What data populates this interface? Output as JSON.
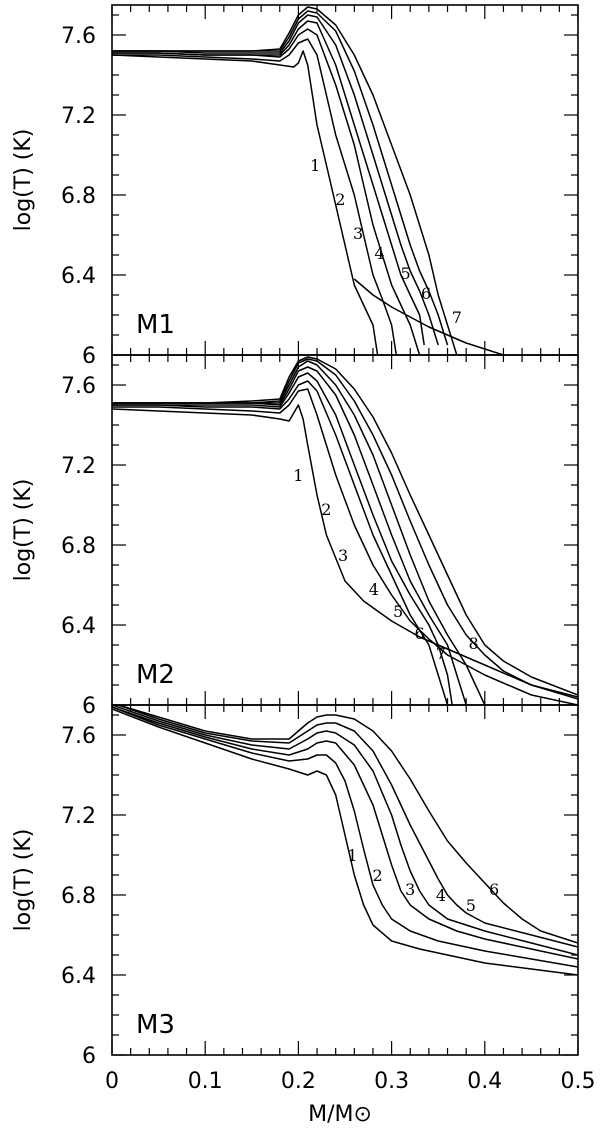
{
  "chart_data": [
    {
      "type": "line",
      "panel": "M1",
      "xlabel": "M/M⊙",
      "ylabel": "log(T)  (K)",
      "xlim": [
        0,
        0.5
      ],
      "ylim": [
        6,
        7.75
      ],
      "yticks": [
        "6",
        "6.4",
        "6.8",
        "7.2",
        "7.6"
      ],
      "series": [
        {
          "name": "1",
          "x": [
            0,
            0.05,
            0.1,
            0.15,
            0.18,
            0.195,
            0.2,
            0.205,
            0.21,
            0.215,
            0.22,
            0.23,
            0.24,
            0.25,
            0.26,
            0.27,
            0.28,
            0.285
          ],
          "y": [
            7.5,
            7.49,
            7.48,
            7.47,
            7.45,
            7.44,
            7.46,
            7.52,
            7.45,
            7.3,
            7.15,
            6.95,
            6.75,
            6.55,
            6.35,
            6.25,
            6.15,
            6.0
          ]
        },
        {
          "name": "2",
          "x": [
            0,
            0.05,
            0.1,
            0.15,
            0.18,
            0.19,
            0.2,
            0.21,
            0.22,
            0.23,
            0.24,
            0.25,
            0.26,
            0.27,
            0.28,
            0.29,
            0.3,
            0.305
          ],
          "y": [
            7.5,
            7.5,
            7.49,
            7.48,
            7.47,
            7.5,
            7.56,
            7.58,
            7.5,
            7.3,
            7.1,
            6.95,
            6.8,
            6.6,
            6.4,
            6.28,
            6.15,
            6.0
          ]
        },
        {
          "name": "3",
          "x": [
            0,
            0.05,
            0.1,
            0.15,
            0.18,
            0.19,
            0.2,
            0.21,
            0.22,
            0.24,
            0.26,
            0.27,
            0.28,
            0.29,
            0.3,
            0.31,
            0.32,
            0.33
          ],
          "y": [
            7.51,
            7.51,
            7.5,
            7.5,
            7.49,
            7.53,
            7.6,
            7.63,
            7.6,
            7.35,
            7.05,
            6.85,
            6.65,
            6.5,
            6.35,
            6.25,
            6.15,
            6.0
          ]
        },
        {
          "name": "4",
          "x": [
            0,
            0.05,
            0.1,
            0.15,
            0.18,
            0.19,
            0.2,
            0.21,
            0.22,
            0.24,
            0.26,
            0.28,
            0.29,
            0.3,
            0.31,
            0.32,
            0.33,
            0.335
          ],
          "y": [
            7.51,
            7.51,
            7.5,
            7.5,
            7.5,
            7.55,
            7.63,
            7.67,
            7.66,
            7.45,
            7.15,
            6.85,
            6.7,
            6.55,
            6.4,
            6.3,
            6.2,
            6.05
          ]
        },
        {
          "name": "5",
          "x": [
            0,
            0.05,
            0.1,
            0.15,
            0.18,
            0.19,
            0.2,
            0.21,
            0.22,
            0.24,
            0.26,
            0.28,
            0.3,
            0.31,
            0.32,
            0.33,
            0.34,
            0.35
          ],
          "y": [
            7.52,
            7.52,
            7.51,
            7.51,
            7.51,
            7.57,
            7.66,
            7.7,
            7.69,
            7.55,
            7.3,
            7.0,
            6.7,
            6.55,
            6.42,
            6.32,
            6.2,
            6.05
          ]
        },
        {
          "name": "6",
          "x": [
            0,
            0.05,
            0.1,
            0.15,
            0.18,
            0.19,
            0.2,
            0.21,
            0.22,
            0.24,
            0.26,
            0.28,
            0.3,
            0.32,
            0.33,
            0.34,
            0.35,
            0.36
          ],
          "y": [
            7.52,
            7.52,
            7.52,
            7.52,
            7.52,
            7.59,
            7.68,
            7.72,
            7.71,
            7.62,
            7.42,
            7.15,
            6.85,
            6.55,
            6.42,
            6.32,
            6.2,
            6.05
          ]
        },
        {
          "name": "7",
          "x": [
            0,
            0.05,
            0.1,
            0.15,
            0.18,
            0.19,
            0.2,
            0.21,
            0.22,
            0.24,
            0.26,
            0.28,
            0.3,
            0.32,
            0.34,
            0.35,
            0.36,
            0.37
          ],
          "y": [
            7.52,
            7.52,
            7.52,
            7.52,
            7.53,
            7.61,
            7.7,
            7.74,
            7.73,
            7.65,
            7.5,
            7.3,
            7.05,
            6.8,
            6.5,
            6.3,
            6.15,
            6.0
          ]
        },
        {
          "name": "",
          "x": [
            0.26,
            0.28,
            0.3,
            0.32,
            0.34,
            0.36,
            0.38,
            0.4,
            0.42
          ],
          "y": [
            6.38,
            6.3,
            6.24,
            6.19,
            6.14,
            6.1,
            6.06,
            6.03,
            6.0
          ]
        }
      ]
    },
    {
      "type": "line",
      "panel": "M2",
      "xlabel": "M/M⊙",
      "ylabel": "log(T)  (K)",
      "xlim": [
        0,
        0.5
      ],
      "ylim": [
        6,
        7.75
      ],
      "yticks": [
        "6",
        "6.4",
        "6.8",
        "7.2",
        "7.6"
      ],
      "series": [
        {
          "name": "1",
          "x": [
            0,
            0.05,
            0.1,
            0.15,
            0.18,
            0.19,
            0.2,
            0.205,
            0.21,
            0.22,
            0.23,
            0.25,
            0.27,
            0.3,
            0.33,
            0.36,
            0.4,
            0.45,
            0.5
          ],
          "y": [
            7.48,
            7.47,
            7.46,
            7.45,
            7.43,
            7.42,
            7.5,
            7.43,
            7.3,
            7.05,
            6.85,
            6.62,
            6.52,
            6.42,
            6.34,
            6.28,
            6.2,
            6.1,
            6.03
          ]
        },
        {
          "name": "2",
          "x": [
            0,
            0.05,
            0.1,
            0.15,
            0.18,
            0.19,
            0.2,
            0.21,
            0.22,
            0.24,
            0.26,
            0.28,
            0.3,
            0.32,
            0.34,
            0.36,
            0.4,
            0.45,
            0.5
          ],
          "y": [
            7.49,
            7.49,
            7.48,
            7.47,
            7.46,
            7.5,
            7.57,
            7.58,
            7.45,
            7.15,
            6.9,
            6.7,
            6.55,
            6.42,
            6.33,
            6.25,
            6.15,
            6.05,
            6.0
          ]
        },
        {
          "name": "3",
          "x": [
            0,
            0.05,
            0.1,
            0.15,
            0.18,
            0.19,
            0.2,
            0.21,
            0.22,
            0.24,
            0.26,
            0.28,
            0.3,
            0.32,
            0.34,
            0.35,
            0.36
          ],
          "y": [
            7.5,
            7.5,
            7.49,
            7.49,
            7.48,
            7.53,
            7.6,
            7.62,
            7.57,
            7.35,
            7.1,
            6.85,
            6.65,
            6.45,
            6.3,
            6.15,
            6.0
          ]
        },
        {
          "name": "4",
          "x": [
            0,
            0.05,
            0.1,
            0.15,
            0.18,
            0.19,
            0.2,
            0.21,
            0.22,
            0.24,
            0.26,
            0.28,
            0.3,
            0.32,
            0.34,
            0.35,
            0.36,
            0.365
          ],
          "y": [
            7.5,
            7.5,
            7.5,
            7.5,
            7.49,
            7.56,
            7.64,
            7.66,
            7.62,
            7.45,
            7.2,
            6.95,
            6.72,
            6.55,
            6.4,
            6.3,
            6.15,
            6.0
          ]
        },
        {
          "name": "5",
          "x": [
            0,
            0.05,
            0.1,
            0.15,
            0.18,
            0.19,
            0.2,
            0.21,
            0.22,
            0.24,
            0.26,
            0.28,
            0.3,
            0.32,
            0.34,
            0.36,
            0.37,
            0.38
          ],
          "y": [
            7.51,
            7.51,
            7.51,
            7.51,
            7.5,
            7.58,
            7.67,
            7.69,
            7.67,
            7.55,
            7.35,
            7.1,
            6.85,
            6.62,
            6.45,
            6.3,
            6.15,
            6.0
          ]
        },
        {
          "name": "6",
          "x": [
            0,
            0.05,
            0.1,
            0.15,
            0.18,
            0.19,
            0.2,
            0.21,
            0.22,
            0.24,
            0.26,
            0.28,
            0.3,
            0.32,
            0.34,
            0.36,
            0.38,
            0.39,
            0.4
          ],
          "y": [
            7.51,
            7.51,
            7.51,
            7.51,
            7.51,
            7.6,
            7.69,
            7.72,
            7.7,
            7.6,
            7.45,
            7.25,
            7.0,
            6.75,
            6.52,
            6.35,
            6.2,
            6.1,
            6.0
          ]
        },
        {
          "name": "7",
          "x": [
            0,
            0.05,
            0.1,
            0.15,
            0.18,
            0.19,
            0.2,
            0.21,
            0.22,
            0.24,
            0.26,
            0.28,
            0.3,
            0.32,
            0.34,
            0.36,
            0.38,
            0.4,
            0.42,
            0.45,
            0.5
          ],
          "y": [
            7.51,
            7.51,
            7.51,
            7.51,
            7.52,
            7.62,
            7.71,
            7.73,
            7.72,
            7.65,
            7.52,
            7.35,
            7.15,
            6.92,
            6.7,
            6.5,
            6.35,
            6.25,
            6.17,
            6.1,
            6.04
          ]
        },
        {
          "name": "8",
          "x": [
            0,
            0.05,
            0.1,
            0.15,
            0.18,
            0.19,
            0.2,
            0.21,
            0.22,
            0.24,
            0.26,
            0.28,
            0.3,
            0.32,
            0.34,
            0.36,
            0.38,
            0.4,
            0.42,
            0.45,
            0.5
          ],
          "y": [
            7.51,
            7.51,
            7.51,
            7.52,
            7.53,
            7.64,
            7.72,
            7.74,
            7.73,
            7.68,
            7.58,
            7.44,
            7.26,
            7.05,
            6.85,
            6.65,
            6.45,
            6.3,
            6.22,
            6.14,
            6.05
          ]
        }
      ]
    },
    {
      "type": "line",
      "panel": "M3",
      "xlabel": "M/M⊙",
      "ylabel": "log(T)  (K)",
      "xlim": [
        0,
        0.5
      ],
      "ylim": [
        6,
        7.75
      ],
      "xticks": [
        "0",
        "0.1",
        "0.2",
        "0.3",
        "0.4",
        "0.5"
      ],
      "yticks": [
        "6",
        "6.4",
        "6.8",
        "7.2",
        "7.6"
      ],
      "series": [
        {
          "name": "1",
          "x": [
            0,
            0.05,
            0.1,
            0.15,
            0.19,
            0.21,
            0.22,
            0.23,
            0.24,
            0.25,
            0.26,
            0.27,
            0.28,
            0.3,
            0.33,
            0.36,
            0.4,
            0.45,
            0.5
          ],
          "y": [
            7.73,
            7.64,
            7.56,
            7.48,
            7.43,
            7.4,
            7.42,
            7.4,
            7.3,
            7.1,
            6.9,
            6.75,
            6.65,
            6.57,
            6.53,
            6.5,
            6.46,
            6.43,
            6.4
          ]
        },
        {
          "name": "2",
          "x": [
            0,
            0.05,
            0.1,
            0.15,
            0.19,
            0.21,
            0.22,
            0.23,
            0.24,
            0.25,
            0.26,
            0.27,
            0.28,
            0.29,
            0.3,
            0.32,
            0.35,
            0.4,
            0.45,
            0.5
          ],
          "y": [
            7.74,
            7.65,
            7.58,
            7.51,
            7.47,
            7.48,
            7.5,
            7.5,
            7.46,
            7.37,
            7.22,
            7.03,
            6.85,
            6.75,
            6.68,
            6.62,
            6.57,
            6.52,
            6.48,
            6.44
          ]
        },
        {
          "name": "3",
          "x": [
            0,
            0.05,
            0.1,
            0.15,
            0.19,
            0.21,
            0.22,
            0.23,
            0.24,
            0.26,
            0.28,
            0.29,
            0.3,
            0.31,
            0.32,
            0.34,
            0.37,
            0.4,
            0.45,
            0.5
          ],
          "y": [
            7.74,
            7.66,
            7.59,
            7.53,
            7.5,
            7.53,
            7.56,
            7.57,
            7.56,
            7.45,
            7.25,
            7.1,
            6.95,
            6.82,
            6.75,
            6.68,
            6.62,
            6.58,
            6.53,
            6.48
          ]
        },
        {
          "name": "4",
          "x": [
            0,
            0.05,
            0.1,
            0.15,
            0.19,
            0.21,
            0.22,
            0.23,
            0.24,
            0.26,
            0.28,
            0.3,
            0.31,
            0.32,
            0.33,
            0.34,
            0.36,
            0.4,
            0.45,
            0.5
          ],
          "y": [
            7.75,
            7.67,
            7.6,
            7.55,
            7.53,
            7.58,
            7.61,
            7.62,
            7.61,
            7.55,
            7.42,
            7.2,
            7.05,
            6.92,
            6.82,
            6.75,
            6.68,
            6.62,
            6.56,
            6.5
          ]
        },
        {
          "name": "5",
          "x": [
            0,
            0.05,
            0.1,
            0.15,
            0.19,
            0.21,
            0.22,
            0.23,
            0.24,
            0.26,
            0.28,
            0.3,
            0.32,
            0.34,
            0.35,
            0.36,
            0.37,
            0.38,
            0.4,
            0.45,
            0.5
          ],
          "y": [
            7.76,
            7.68,
            7.61,
            7.57,
            7.56,
            7.62,
            7.65,
            7.66,
            7.66,
            7.62,
            7.52,
            7.35,
            7.15,
            6.97,
            6.88,
            6.8,
            6.75,
            6.71,
            6.66,
            6.6,
            6.54
          ]
        },
        {
          "name": "6",
          "x": [
            0,
            0.05,
            0.1,
            0.15,
            0.19,
            0.21,
            0.22,
            0.23,
            0.24,
            0.26,
            0.28,
            0.3,
            0.32,
            0.34,
            0.36,
            0.38,
            0.4,
            0.42,
            0.44,
            0.46,
            0.5
          ],
          "y": [
            7.76,
            7.69,
            7.62,
            7.58,
            7.58,
            7.66,
            7.69,
            7.7,
            7.7,
            7.68,
            7.62,
            7.52,
            7.38,
            7.22,
            7.07,
            6.96,
            6.86,
            6.76,
            6.68,
            6.62,
            6.56
          ]
        }
      ]
    }
  ],
  "curve_labels": [
    [
      {
        "text": "1",
        "x": 0.218,
        "y": 6.92
      },
      {
        "text": "2",
        "x": 0.245,
        "y": 6.75
      },
      {
        "text": "3",
        "x": 0.264,
        "y": 6.58
      },
      {
        "text": "4",
        "x": 0.287,
        "y": 6.48
      },
      {
        "text": "5",
        "x": 0.315,
        "y": 6.38
      },
      {
        "text": "6",
        "x": 0.337,
        "y": 6.28
      },
      {
        "text": "7",
        "x": 0.37,
        "y": 6.16
      }
    ],
    [
      {
        "text": "1",
        "x": 0.2,
        "y": 7.12
      },
      {
        "text": "2",
        "x": 0.23,
        "y": 6.95
      },
      {
        "text": "3",
        "x": 0.248,
        "y": 6.72
      },
      {
        "text": "4",
        "x": 0.281,
        "y": 6.55
      },
      {
        "text": "5",
        "x": 0.307,
        "y": 6.44
      },
      {
        "text": "6",
        "x": 0.33,
        "y": 6.33
      },
      {
        "text": "7",
        "x": 0.353,
        "y": 6.23
      },
      {
        "text": "8",
        "x": 0.388,
        "y": 6.28
      }
    ],
    [
      {
        "text": "1",
        "x": 0.258,
        "y": 6.97
      },
      {
        "text": "2",
        "x": 0.285,
        "y": 6.87
      },
      {
        "text": "3",
        "x": 0.32,
        "y": 6.8
      },
      {
        "text": "4",
        "x": 0.353,
        "y": 6.77
      },
      {
        "text": "5",
        "x": 0.385,
        "y": 6.72
      },
      {
        "text": "6",
        "x": 0.41,
        "y": 6.8
      }
    ]
  ]
}
